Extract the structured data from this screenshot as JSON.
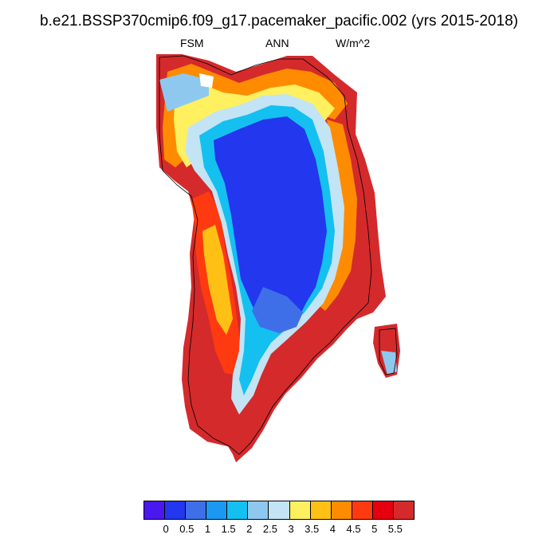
{
  "title": "b.e21.BSSP370cmip6.f09_g17.pacemaker_pacific.002 (yrs 2015-2018)",
  "subtitle": {
    "left": "FSM",
    "center": "ANN",
    "right": "W/m^2"
  },
  "colorbar": {
    "colors": [
      "#4a18ee",
      "#2237ee",
      "#3f6fe8",
      "#1a98f2",
      "#14c0f0",
      "#8ec8ef",
      "#c2e4f4",
      "#fff060",
      "#ffc015",
      "#ff8b00",
      "#ff3a10",
      "#e6000f",
      "#d42a2c"
    ],
    "tick_labels": [
      "0",
      "0.5",
      "1",
      "1.5",
      "2",
      "2.5",
      "3",
      "3.5",
      "4",
      "4.5",
      "5",
      "5.5"
    ]
  }
}
